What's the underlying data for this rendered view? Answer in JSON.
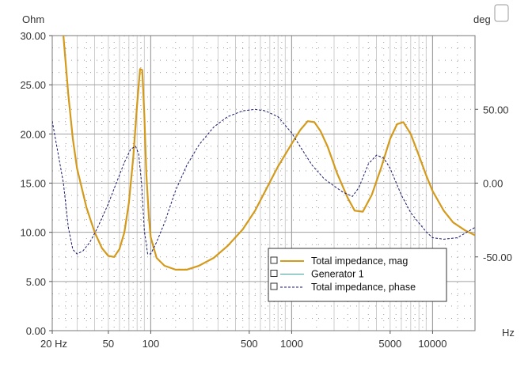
{
  "chart_data": {
    "type": "line",
    "x_scale": "log",
    "xlim": [
      20,
      20000
    ],
    "y_left": {
      "unit": "Ohm",
      "lim": [
        0,
        30
      ],
      "ticks": [
        "0.00",
        "5.00",
        "10.00",
        "15.00",
        "20.00",
        "25.00",
        "30.00"
      ]
    },
    "y_right": {
      "unit": "deg",
      "lim": [
        -100,
        100
      ],
      "ticks": [
        "-50.00",
        "0.00",
        "50.00"
      ]
    },
    "x_unit": "Hz",
    "x_ticks": [
      "20 Hz",
      "50",
      "100",
      "500",
      "1000",
      "5000",
      "10000"
    ],
    "grid": true,
    "legend_placement": "bottom-right",
    "colors": {
      "magnitude": "#d49a1c",
      "generator": "#3aa89a",
      "phase": "#1a1a6e",
      "grid": "#c0c0c0"
    },
    "series": [
      {
        "name": "Total impedance, mag",
        "axis": "left",
        "style": "solid",
        "x": [
          24,
          26,
          28,
          30,
          35,
          40,
          45,
          50,
          55,
          60,
          65,
          70,
          75,
          80,
          84,
          87,
          90,
          93,
          97,
          100,
          110,
          125,
          150,
          180,
          220,
          280,
          350,
          450,
          550,
          650,
          800,
          1000,
          1150,
          1300,
          1450,
          1600,
          1800,
          2100,
          2500,
          2800,
          3200,
          3700,
          4300,
          5000,
          5600,
          6200,
          7000,
          8000,
          9000,
          10000,
          12000,
          14000,
          17000,
          20000
        ],
        "values": [
          30.0,
          24.0,
          19.5,
          16.5,
          12.5,
          10.0,
          8.4,
          7.6,
          7.5,
          8.3,
          10.0,
          13.0,
          17.5,
          23.0,
          26.6,
          26.5,
          22.0,
          16.0,
          11.5,
          9.5,
          7.4,
          6.6,
          6.2,
          6.2,
          6.6,
          7.4,
          8.6,
          10.3,
          12.2,
          14.2,
          16.7,
          19.0,
          20.4,
          21.3,
          21.2,
          20.3,
          18.7,
          16.0,
          13.5,
          12.2,
          12.1,
          13.8,
          16.5,
          19.5,
          21.0,
          21.2,
          20.0,
          17.8,
          15.8,
          14.2,
          12.2,
          11.0,
          10.2,
          9.7
        ]
      },
      {
        "name": "Generator 1",
        "axis": "left",
        "style": "solid",
        "x": [],
        "values": []
      },
      {
        "name": "Total impedance, phase",
        "axis": "right",
        "style": "dashed",
        "x": [
          20,
          22,
          24,
          26,
          28,
          30,
          33,
          37,
          42,
          50,
          58,
          65,
          72,
          78,
          82,
          86,
          90,
          95,
          100,
          110,
          125,
          150,
          180,
          220,
          280,
          350,
          450,
          550,
          650,
          800,
          1000,
          1200,
          1400,
          1700,
          2000,
          2300,
          2700,
          3000,
          3500,
          4000,
          4500,
          5000,
          6000,
          7000,
          8000,
          9000,
          10000,
          12000,
          15000,
          20000
        ],
        "values": [
          42,
          20,
          0,
          -30,
          -45,
          -48,
          -46,
          -40,
          -30,
          -14,
          2,
          14,
          23,
          25,
          20,
          0,
          -32,
          -48,
          -48,
          -40,
          -27,
          -5,
          12,
          26,
          38,
          45,
          49,
          50,
          49,
          45,
          34,
          22,
          12,
          3,
          -2,
          -6,
          -9,
          -3,
          13,
          19,
          17,
          10,
          -8,
          -20,
          -27,
          -33,
          -37,
          -38,
          -37,
          -30
        ]
      }
    ]
  },
  "legend": [
    {
      "label": "Total impedance, mag",
      "checkbox": false
    },
    {
      "label": "Generator 1",
      "checkbox": false
    },
    {
      "label": "Total impedance, phase",
      "checkbox": false
    }
  ]
}
